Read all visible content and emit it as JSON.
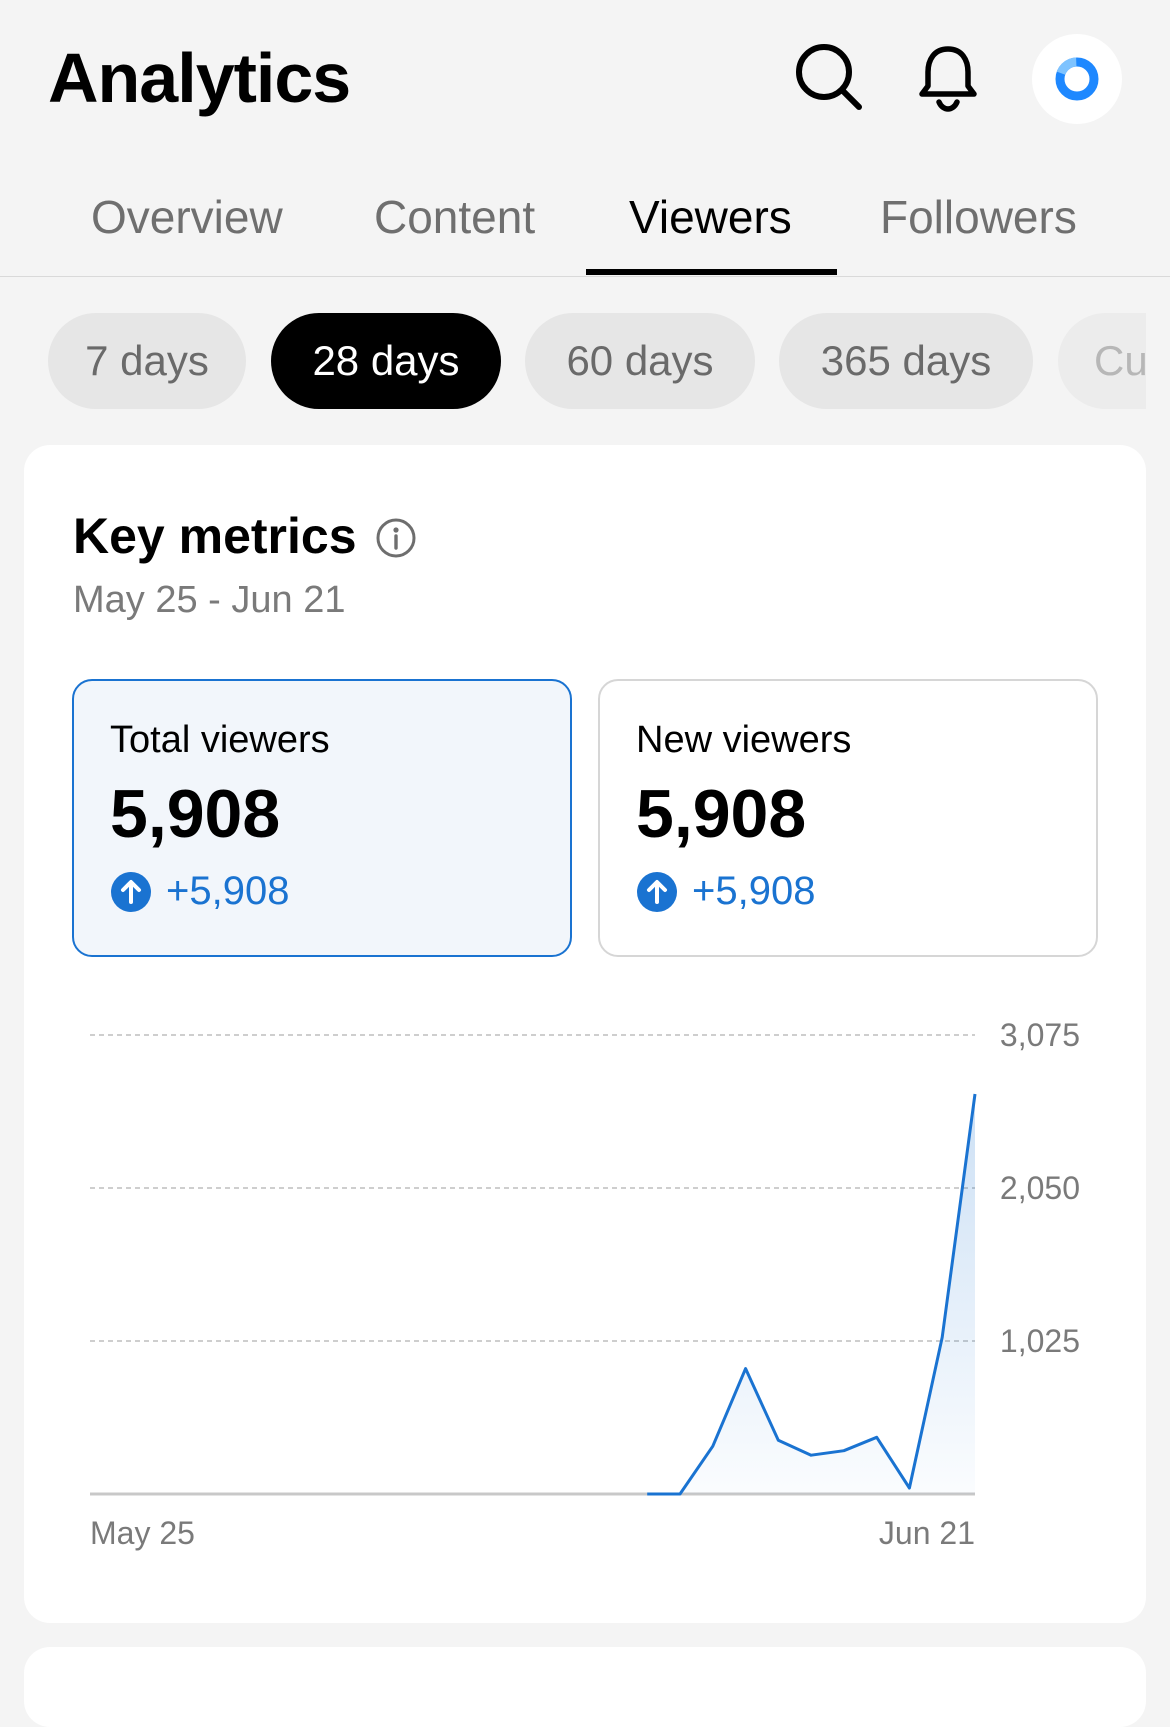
{
  "header": {
    "title": "Analytics",
    "icons": [
      "search-icon",
      "bell-icon",
      "avatar"
    ]
  },
  "tabs": [
    {
      "label": "Overview",
      "active": false
    },
    {
      "label": "Content",
      "active": false
    },
    {
      "label": "Viewers",
      "active": true
    },
    {
      "label": "Followers",
      "active": false
    }
  ],
  "periods": [
    {
      "label": "7 days",
      "active": false
    },
    {
      "label": "28 days",
      "active": true
    },
    {
      "label": "60 days",
      "active": false
    },
    {
      "label": "365 days",
      "active": false
    },
    {
      "label": "Cu",
      "active": false
    }
  ],
  "key_metrics": {
    "title": "Key metrics",
    "date_range": "May 25 - Jun 21",
    "metrics": [
      {
        "label": "Total viewers",
        "value": "5,908",
        "delta": "+5,908",
        "selected": true
      },
      {
        "label": "New viewers",
        "value": "5,908",
        "delta": "+5,908",
        "selected": false
      }
    ]
  },
  "colors": {
    "accent": "#1a73d1",
    "active_chip": "#000000",
    "chip": "#e6e6e6",
    "background": "#f4f4f4"
  },
  "chart_data": {
    "type": "area",
    "x": [
      "May 25",
      "May 26",
      "May 27",
      "May 28",
      "May 29",
      "May 30",
      "May 31",
      "Jun 1",
      "Jun 2",
      "Jun 3",
      "Jun 4",
      "Jun 5",
      "Jun 6",
      "Jun 7",
      "Jun 8",
      "Jun 9",
      "Jun 10",
      "Jun 11",
      "Jun 12",
      "Jun 13",
      "Jun 14",
      "Jun 15",
      "Jun 16",
      "Jun 17",
      "Jun 18",
      "Jun 19",
      "Jun 20",
      "Jun 21"
    ],
    "series": [
      {
        "values": [
          null,
          null,
          null,
          null,
          null,
          null,
          null,
          null,
          null,
          null,
          null,
          null,
          null,
          null,
          null,
          null,
          null,
          0,
          0,
          320,
          840,
          360,
          260,
          290,
          380,
          40,
          1050,
          2680
        ]
      }
    ],
    "y_ticks": [
      "1,025",
      "2,050",
      "3,075"
    ],
    "x_tick_labels": [
      "May 25",
      "Jun 21"
    ],
    "ylim": [
      0,
      3075
    ],
    "grid": true
  }
}
